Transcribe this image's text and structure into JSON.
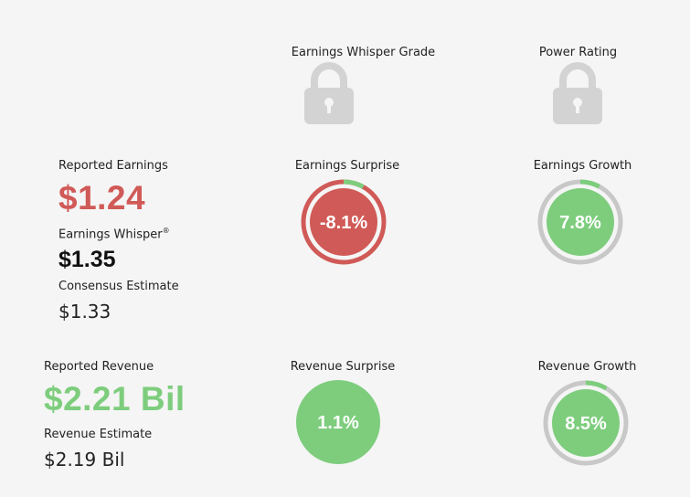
{
  "grades": {
    "whisper_grade_label": "Earnings Whisper Grade",
    "power_rating_label": "Power Rating",
    "lock_icon": "lock-icon"
  },
  "earnings": {
    "reported_label": "Reported Earnings",
    "reported_value": "$1.24",
    "whisper_label": "Earnings Whisper",
    "whisper_mark": "®",
    "whisper_value": "$1.35",
    "consensus_label": "Consensus Estimate",
    "consensus_value": "$1.33",
    "surprise_label": "Earnings Surprise",
    "surprise_value": "-8.1%",
    "growth_label": "Earnings Growth",
    "growth_value": "7.8%"
  },
  "revenue": {
    "reported_label": "Reported Revenue",
    "reported_value": "$2.21 Bil",
    "estimate_label": "Revenue Estimate",
    "estimate_value": "$2.19 Bil",
    "surprise_label": "Revenue Surprise",
    "surprise_value": "1.1%",
    "growth_label": "Revenue Growth",
    "growth_value": "8.5%"
  },
  "gauges": {
    "earnings_surprise": {
      "percent": -8.1,
      "fill": "#d05a57",
      "ring": "#d05a57",
      "arc": "#7dcd7d"
    },
    "earnings_growth": {
      "percent": 7.8,
      "fill": "#7dcd7d",
      "ring": "#c8c8c8",
      "arc": "#7dcd7d"
    },
    "revenue_surprise": {
      "percent": 1.1,
      "fill": "#7dcd7d"
    },
    "revenue_growth": {
      "percent": 8.5,
      "fill": "#7dcd7d",
      "ring": "#c8c8c8",
      "arc": "#7dcd7d"
    }
  },
  "colors": {
    "negative": "#d05a57",
    "positive": "#7dcd7d",
    "neutral_ring": "#c8c8c8",
    "lock": "#d3d3d3"
  }
}
